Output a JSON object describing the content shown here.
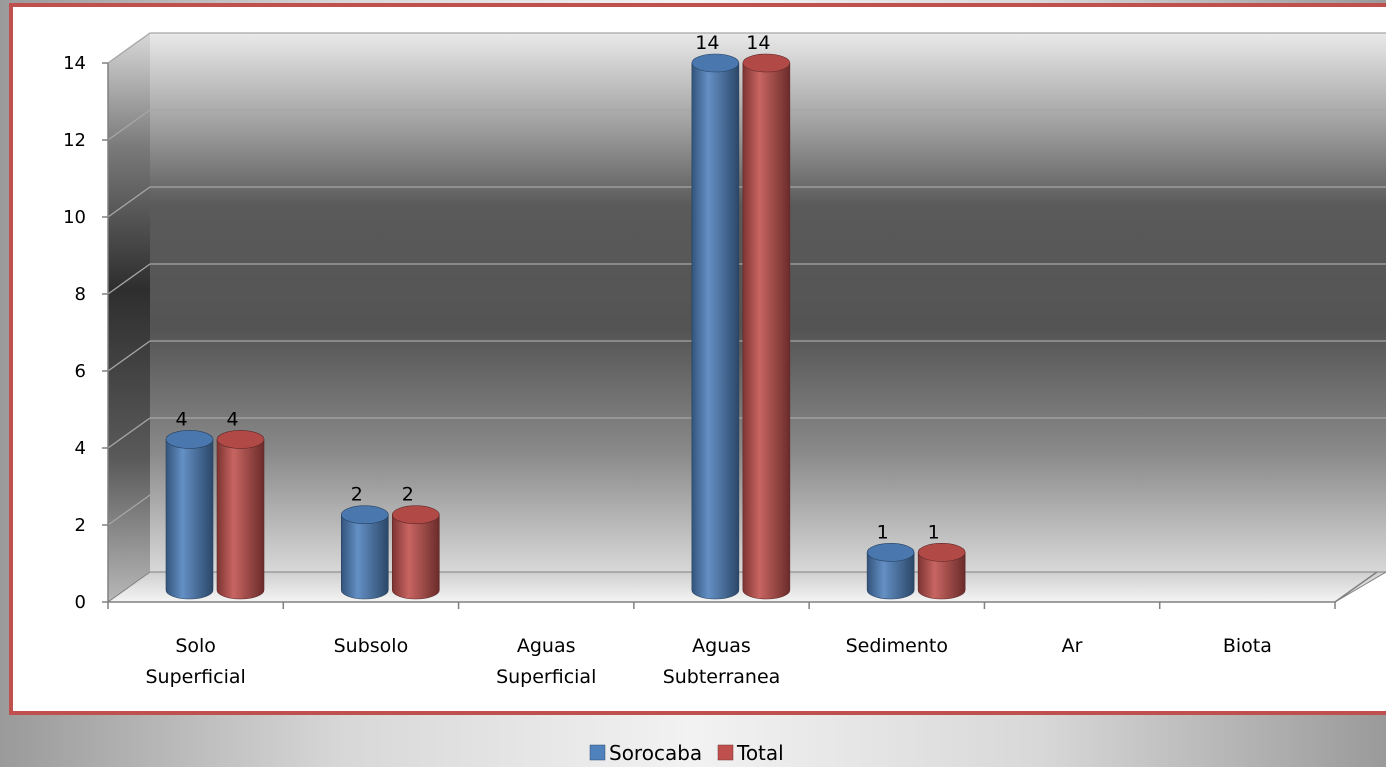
{
  "chart_data": {
    "type": "bar",
    "categories": [
      [
        "Solo",
        "Superficial"
      ],
      [
        "Subsolo"
      ],
      [
        "Aguas",
        "Superficial"
      ],
      [
        "Aguas",
        "Subterranea"
      ],
      [
        "Sedimento"
      ],
      [
        "Ar"
      ],
      [
        "Biota"
      ]
    ],
    "series": [
      {
        "name": "Sorocaba",
        "values": [
          4,
          2,
          0,
          14,
          1,
          0,
          0
        ],
        "color": "#4f81bd"
      },
      {
        "name": "Total",
        "values": [
          4,
          2,
          0,
          14,
          1,
          0,
          0
        ],
        "color": "#c0504d"
      }
    ],
    "ylim": [
      0,
      14
    ],
    "yticks": [
      0,
      2,
      4,
      6,
      8,
      10,
      12,
      14
    ],
    "data_labels": true,
    "grid": true,
    "legend_position": "bottom",
    "frame_color": "#c0504d"
  }
}
